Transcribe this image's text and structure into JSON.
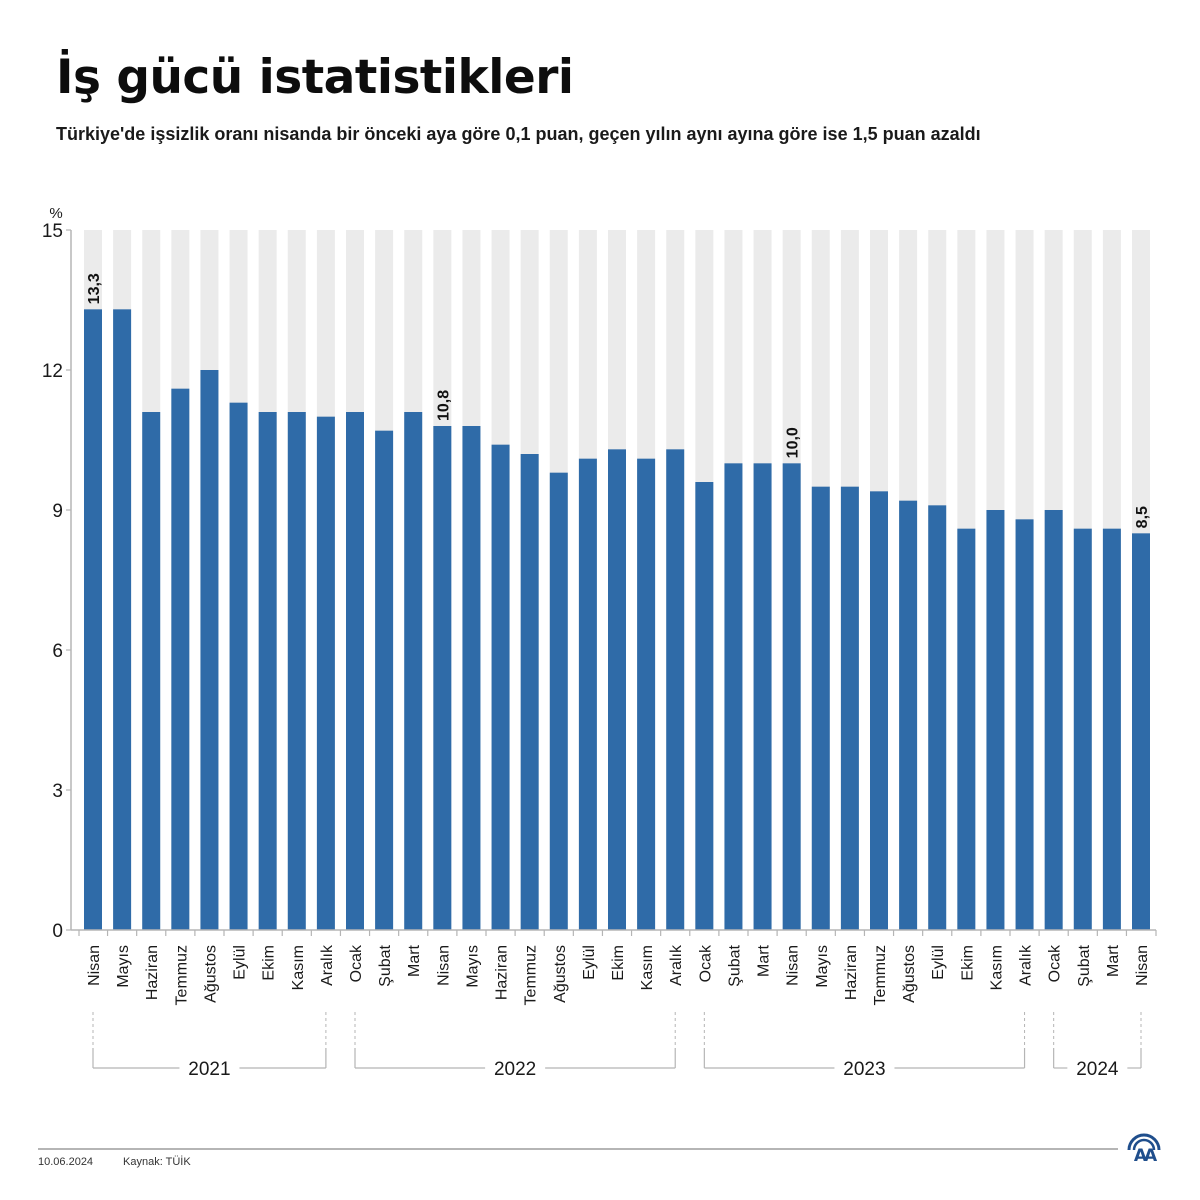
{
  "header": {
    "title": "İş gücü istatistikleri",
    "subtitle": "Türkiye'de işsizlik oranı nisanda bir önceki aya göre 0,1 puan, geçen yılın aynı ayına göre ise 1,5 puan azaldı"
  },
  "footer": {
    "date": "10.06.2024",
    "source": "Kaynak: TÜİK",
    "logo": "AA"
  },
  "colors": {
    "bar": "#2f6ba8",
    "bar_background": "#ebebeb",
    "axis": "#b5b5b5",
    "text": "#1a1a1a"
  },
  "chart_data": {
    "type": "bar",
    "title": "İş gücü istatistikleri",
    "ylabel": "%",
    "ylim": [
      0,
      15
    ],
    "yticks": [
      0,
      3,
      6,
      9,
      12,
      15
    ],
    "grid": false,
    "categories": [
      "Nisan",
      "Mayıs",
      "Haziran",
      "Temmuz",
      "Ağustos",
      "Eylül",
      "Ekim",
      "Kasım",
      "Aralık",
      "Ocak",
      "Şubat",
      "Mart",
      "Nisan",
      "Mayıs",
      "Haziran",
      "Temmuz",
      "Ağustos",
      "Eylül",
      "Ekim",
      "Kasım",
      "Aralık",
      "Ocak",
      "Şubat",
      "Mart",
      "Nisan",
      "Mayıs",
      "Haziran",
      "Temmuz",
      "Ağustos",
      "Eylül",
      "Ekim",
      "Kasım",
      "Aralık",
      "Ocak",
      "Şubat",
      "Mart",
      "Nisan"
    ],
    "values": [
      13.3,
      13.3,
      11.1,
      11.6,
      12.0,
      11.3,
      11.1,
      11.1,
      11.0,
      11.1,
      10.7,
      11.1,
      10.8,
      10.8,
      10.4,
      10.2,
      9.8,
      10.1,
      10.3,
      10.1,
      10.3,
      9.6,
      10.0,
      10.0,
      10.0,
      9.5,
      9.5,
      9.4,
      9.2,
      9.1,
      8.6,
      9.0,
      8.8,
      9.0,
      8.6,
      8.6,
      8.5
    ],
    "data_labels": [
      {
        "index": 0,
        "text": "13,3"
      },
      {
        "index": 12,
        "text": "10,8"
      },
      {
        "index": 24,
        "text": "10,0"
      },
      {
        "index": 36,
        "text": "8,5"
      }
    ],
    "year_groups": [
      {
        "label": "2021",
        "start": 0,
        "end": 8
      },
      {
        "label": "2022",
        "start": 9,
        "end": 20
      },
      {
        "label": "2023",
        "start": 21,
        "end": 32
      },
      {
        "label": "2024",
        "start": 33,
        "end": 36
      }
    ]
  }
}
